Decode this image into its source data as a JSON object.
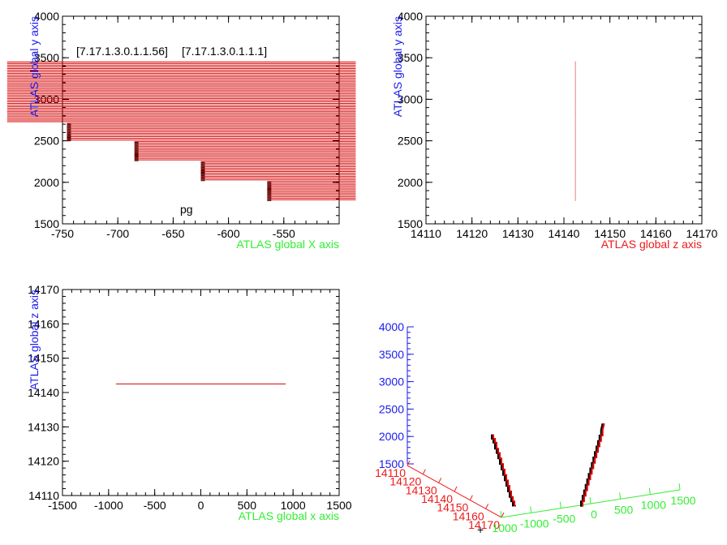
{
  "colors": {
    "axis_black": "#000000",
    "label_green": "#33ee33",
    "label_blue": "#1a1aee",
    "label_red": "#ee1a1a",
    "track_red": "#d40000",
    "track_black": "#000000"
  },
  "chart_data": [
    {
      "type": "line",
      "panel": "top-left",
      "xlabel": "ATLAS global X axis",
      "ylabel": "ATLAS global y axis",
      "xlim": [
        -750,
        -500
      ],
      "ylim": [
        1500,
        4000
      ],
      "xticks": [
        "-750",
        "-700",
        "-650",
        "-600",
        "-550"
      ],
      "yticks": [
        "1500",
        "2000",
        "2500",
        "3000",
        "3500",
        "4000"
      ],
      "annotations": [
        "[7.17.1.3.0.1.1.56]",
        "[7.17.1.3.0.1.1.1]",
        "pg"
      ],
      "series": [
        {
          "color": "track_red",
          "y_from": 2730,
          "y_to": 3450,
          "x_from": -800,
          "x_to": -485,
          "step": 20
        },
        {
          "color": "track_red",
          "y_from": 2510,
          "y_to": 2710,
          "x_from": -746,
          "x_to": -485,
          "step": 20
        },
        {
          "color": "track_red",
          "y_from": 2270,
          "y_to": 2490,
          "x_from": -685,
          "x_to": -485,
          "step": 20
        },
        {
          "color": "track_red",
          "y_from": 2030,
          "y_to": 2250,
          "x_from": -625,
          "x_to": -485,
          "step": 20
        },
        {
          "color": "track_red",
          "y_from": 1790,
          "y_to": 2010,
          "x_from": -565,
          "x_to": -485,
          "step": 20
        }
      ]
    },
    {
      "type": "line",
      "panel": "top-right",
      "xlabel": "ATLAS global z axis",
      "ylabel": "ATLAS global y axis",
      "xlim": [
        14110,
        14170
      ],
      "ylim": [
        1500,
        4000
      ],
      "xticks": [
        "14110",
        "14120",
        "14130",
        "14140",
        "14150",
        "14160",
        "14170"
      ],
      "yticks": [
        "1500",
        "2000",
        "2500",
        "3000",
        "3500",
        "4000"
      ],
      "series": [
        {
          "color": "track_red",
          "x": [
            14142.5,
            14142.5
          ],
          "y": [
            1780,
            3460
          ]
        }
      ]
    },
    {
      "type": "line",
      "panel": "bottom-left",
      "xlabel": "ATLAS global x axis",
      "ylabel": "ATLAS global z axis",
      "xlim": [
        -1500,
        1500
      ],
      "ylim": [
        14110,
        14170
      ],
      "xticks": [
        "-1500",
        "-1000",
        "-500",
        "0",
        "500",
        "1000",
        "1500"
      ],
      "yticks": [
        "14110",
        "14120",
        "14130",
        "14140",
        "14150",
        "14160",
        "14170"
      ],
      "series": [
        {
          "color": "track_red",
          "x": [
            -920,
            920
          ],
          "y": [
            14142.5,
            14142.5
          ]
        }
      ]
    },
    {
      "type": "line",
      "panel": "bottom-right",
      "yticks": [
        "1500",
        "2000",
        "2500",
        "3000",
        "3500",
        "4000"
      ],
      "zticks": [
        "14110",
        "14120",
        "14130",
        "14140",
        "14150",
        "14160",
        "14170"
      ],
      "xticks": [
        "1000",
        "-1000",
        "-500",
        "0",
        "500",
        "1000",
        "1500"
      ],
      "series": [
        {
          "name": "",
          "color": "track_red",
          "x": [
            -700,
            -700,
            -690,
            -690,
            -680,
            -680,
            -670,
            -670,
            -660,
            -660,
            -650,
            -650,
            -640,
            -640,
            -630,
            -630,
            -620,
            -620,
            -610,
            -610,
            -600,
            -600,
            -590,
            -590,
            -580,
            -580,
            -570,
            -570,
            -560
          ],
          "y": [
            3000,
            2920,
            2920,
            2850,
            2850,
            2740,
            2740,
            2660,
            2660,
            2560,
            2560,
            2460,
            2460,
            2360,
            2360,
            2260,
            2260,
            2160,
            2160,
            2060,
            2060,
            1960,
            1960,
            1860,
            1860,
            1780,
            1780,
            1700,
            1700
          ]
        },
        {
          "name": "",
          "color": "track_red",
          "x": [
            560,
            560,
            570,
            570,
            580,
            580,
            590,
            590,
            600,
            600,
            610,
            610,
            620,
            620,
            630,
            630,
            640,
            640,
            650,
            650,
            660,
            660,
            670,
            670,
            680,
            680,
            690,
            690,
            700
          ],
          "y": [
            1680,
            1780,
            1780,
            1880,
            1880,
            1980,
            1980,
            2080,
            2080,
            2180,
            2180,
            2280,
            2280,
            2380,
            2380,
            2480,
            2480,
            2580,
            2580,
            2680,
            2680,
            2780,
            2780,
            2880,
            2880,
            2980,
            2980,
            3080,
            3200
          ]
        }
      ]
    }
  ]
}
